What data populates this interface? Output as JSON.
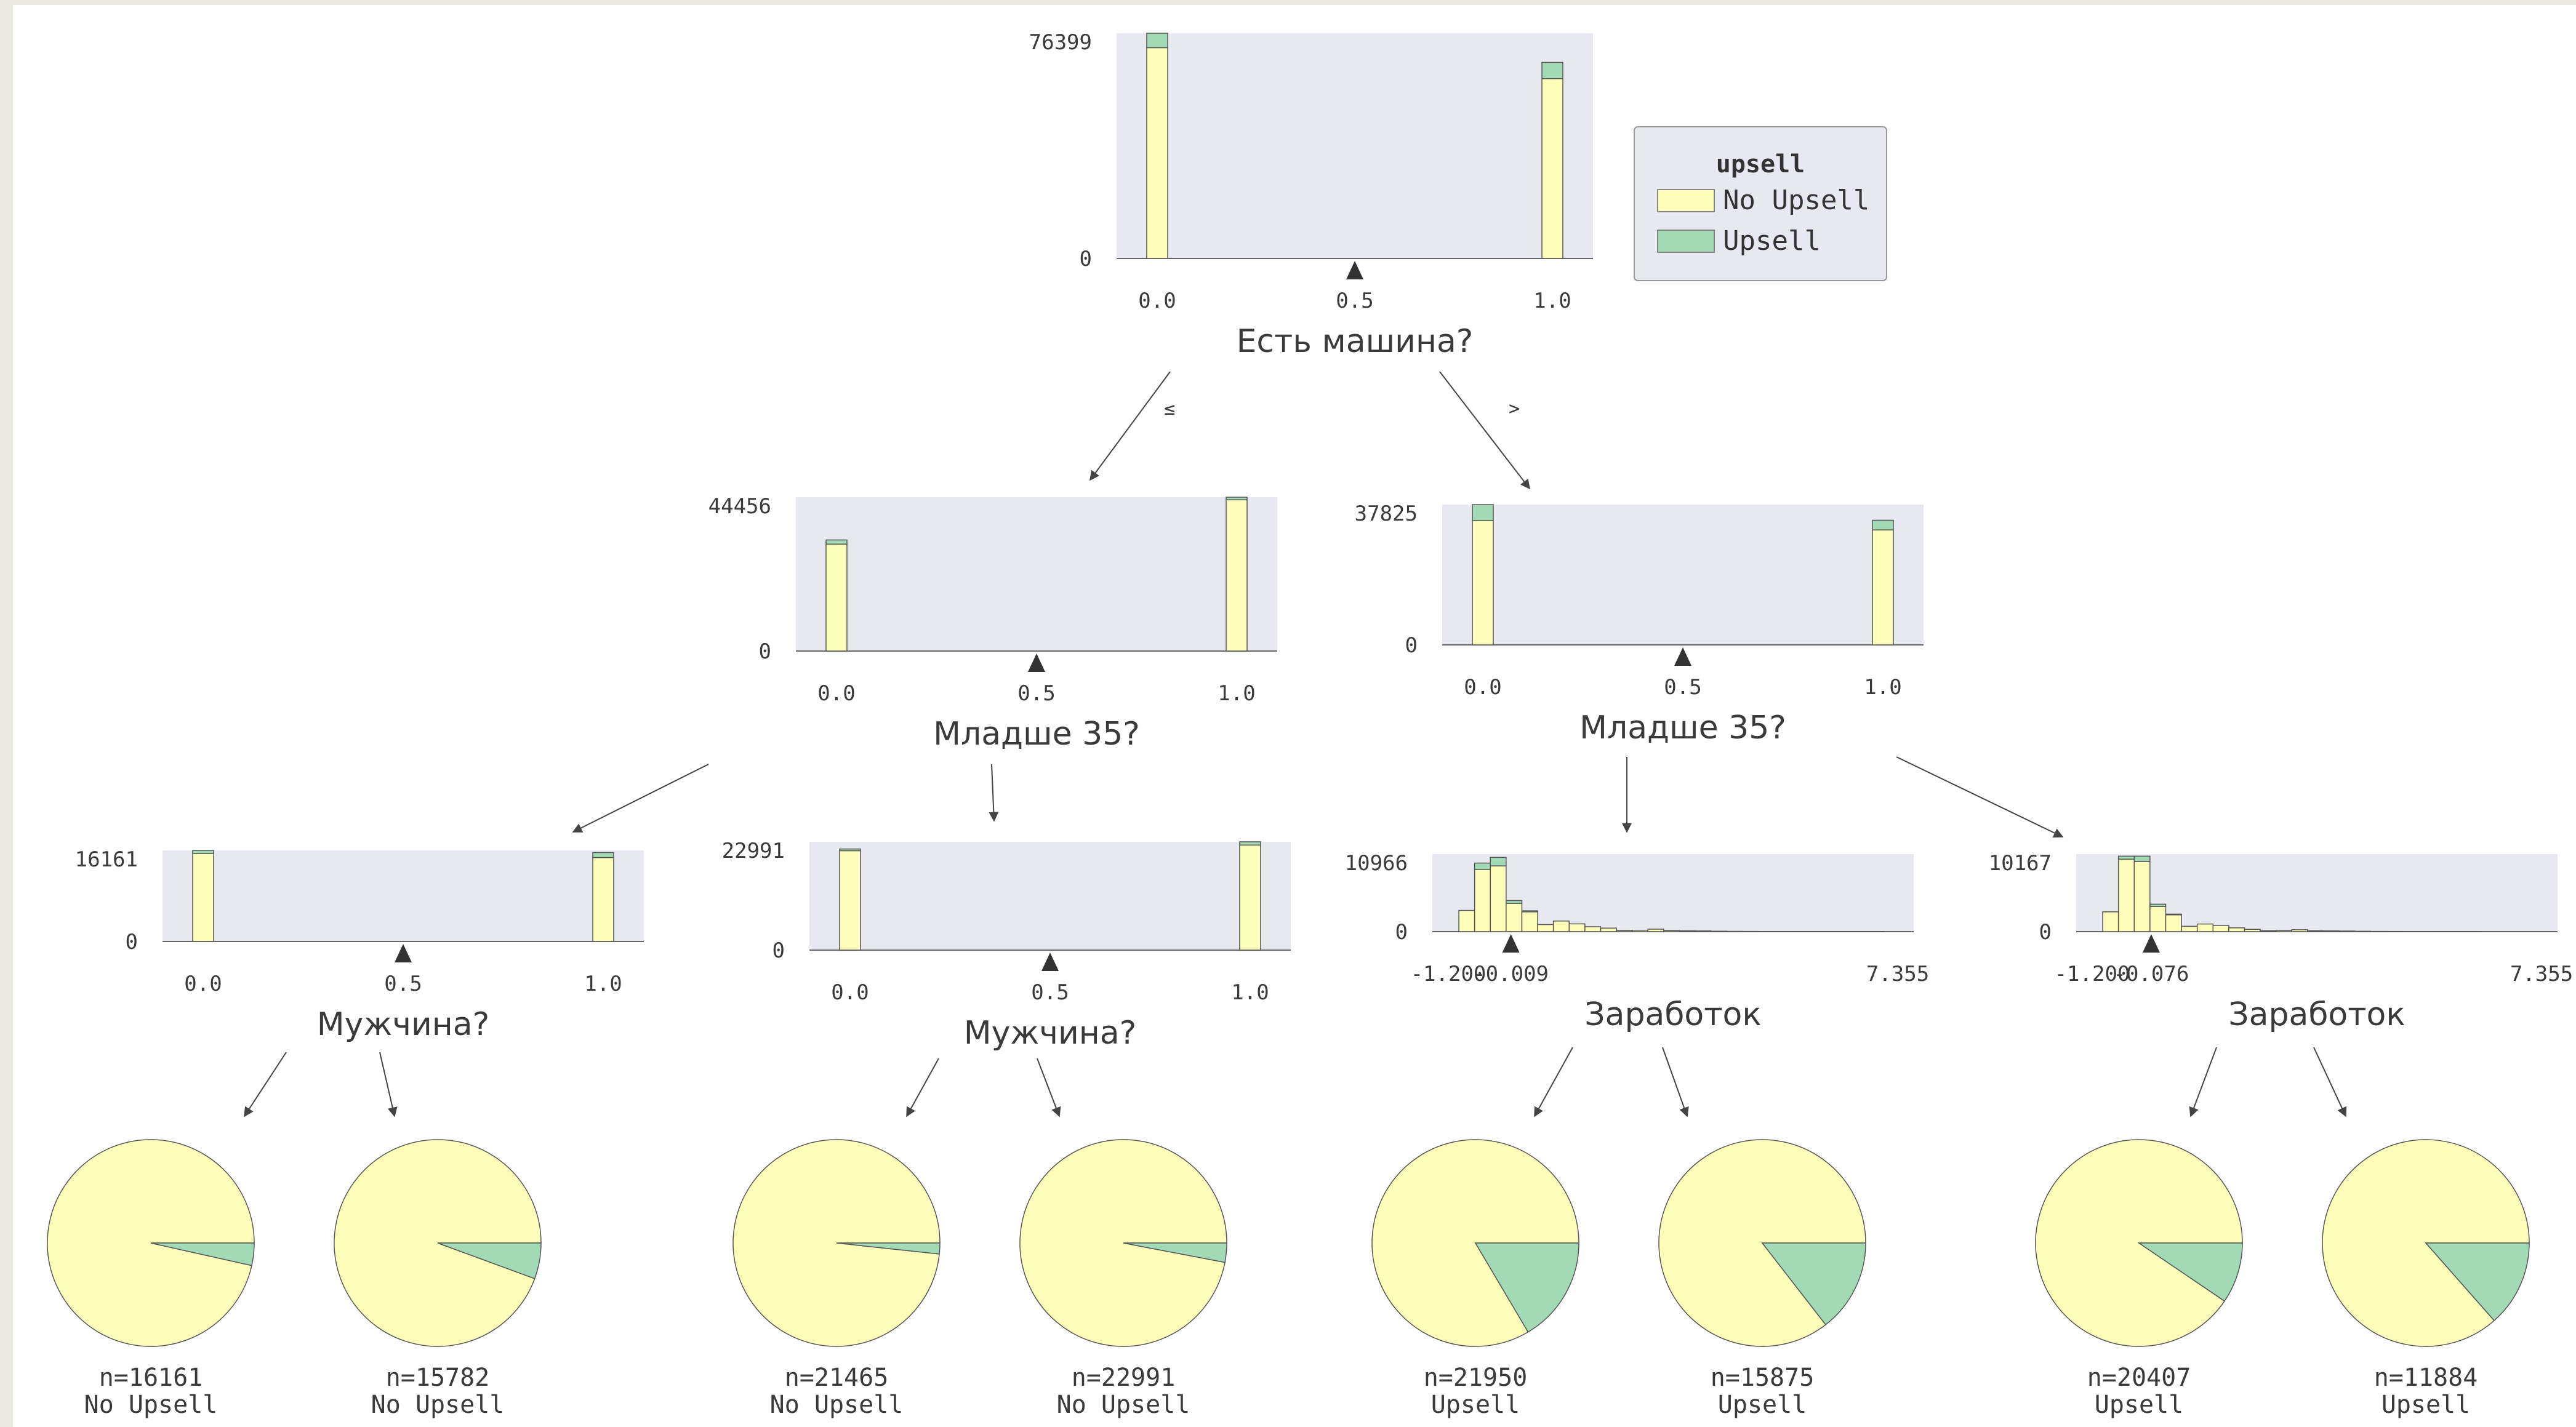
{
  "chart_data": {
    "type": "decision-tree",
    "class_colors": {
      "No Upsell": "#fefebb",
      "Upsell": "#a1dab4"
    },
    "legend": {
      "title": "upsell",
      "items": [
        {
          "label": "No Upsell",
          "color": "#fefebb"
        },
        {
          "label": "Upsell",
          "color": "#a1dab4"
        }
      ]
    },
    "edge_labels": {
      "le": "≤",
      "gt": ">"
    },
    "nodes": [
      {
        "id": "root",
        "feature": "Есть машина?",
        "kind": "binary",
        "split": 0.5,
        "ymax_label": "76399",
        "ymin_label": "0",
        "xticks": [
          "0.0",
          "0.5",
          "1.0"
        ],
        "bins": [
          {
            "x": 0.0,
            "no": 71500,
            "yes": 4899
          },
          {
            "x": 1.0,
            "no": 61000,
            "yes": 5500
          }
        ]
      },
      {
        "id": "left",
        "feature": "Младше 35?",
        "kind": "binary",
        "split": 0.5,
        "ymax_label": "44456",
        "ymin_label": "0",
        "xticks": [
          "0.0",
          "0.5",
          "1.0"
        ],
        "bins": [
          {
            "x": 0.0,
            "no": 30900,
            "yes": 1200
          },
          {
            "x": 1.0,
            "no": 43700,
            "yes": 756
          }
        ]
      },
      {
        "id": "right",
        "feature": "Младше 35?",
        "kind": "binary",
        "split": 0.5,
        "ymax_label": "37825",
        "ymin_label": "0",
        "xticks": [
          "0.0",
          "0.5",
          "1.0"
        ],
        "bins": [
          {
            "x": 0.0,
            "no": 33500,
            "yes": 4325
          },
          {
            "x": 1.0,
            "no": 31000,
            "yes": 2600
          }
        ]
      },
      {
        "id": "ll",
        "feature": "Мужчина?",
        "kind": "binary",
        "split": 0.5,
        "ymax_label": "16161",
        "ymin_label": "0",
        "xticks": [
          "0.0",
          "0.5",
          "1.0"
        ],
        "bins": [
          {
            "x": 0.0,
            "no": 15600,
            "yes": 561
          },
          {
            "x": 1.0,
            "no": 14900,
            "yes": 882
          }
        ]
      },
      {
        "id": "lr",
        "feature": "Мужчина?",
        "kind": "binary",
        "split": 0.5,
        "ymax_label": "22991",
        "ymin_label": "0",
        "xticks": [
          "0.0",
          "0.5",
          "1.0"
        ],
        "bins": [
          {
            "x": 0.0,
            "no": 21100,
            "yes": 365
          },
          {
            "x": 1.0,
            "no": 22300,
            "yes": 691
          }
        ]
      },
      {
        "id": "rl",
        "feature": "Заработок",
        "kind": "hist",
        "split": -0.009,
        "xmin": -1.2,
        "xmax": 7.355,
        "ymax_label": "10966",
        "ymin_label": "0",
        "xticks": [
          "-1.200",
          "-0.009",
          "7.355"
        ],
        "bins": [
          {
            "x": -0.85,
            "no": 3000,
            "yes": 0
          },
          {
            "x": -0.55,
            "no": 8800,
            "yes": 900
          },
          {
            "x": -0.25,
            "no": 9300,
            "yes": 1200
          },
          {
            "x": 0.05,
            "no": 4000,
            "yes": 400
          },
          {
            "x": 0.35,
            "no": 2800,
            "yes": 150
          },
          {
            "x": 0.65,
            "no": 1000,
            "yes": 0
          },
          {
            "x": 0.95,
            "no": 1500,
            "yes": 0
          },
          {
            "x": 1.25,
            "no": 1100,
            "yes": 0
          },
          {
            "x": 1.55,
            "no": 700,
            "yes": 0
          },
          {
            "x": 1.85,
            "no": 500,
            "yes": 0
          },
          {
            "x": 2.15,
            "no": 150,
            "yes": 0
          },
          {
            "x": 2.45,
            "no": 200,
            "yes": 0
          },
          {
            "x": 2.75,
            "no": 350,
            "yes": 0
          },
          {
            "x": 3.05,
            "no": 150,
            "yes": 0
          },
          {
            "x": 3.35,
            "no": 120,
            "yes": 0
          },
          {
            "x": 3.65,
            "no": 100,
            "yes": 0
          },
          {
            "x": 3.95,
            "no": 60,
            "yes": 0
          },
          {
            "x": 4.25,
            "no": 40,
            "yes": 0
          },
          {
            "x": 4.55,
            "no": 30,
            "yes": 0
          },
          {
            "x": 4.85,
            "no": 20,
            "yes": 0
          },
          {
            "x": 5.15,
            "no": 15,
            "yes": 0
          },
          {
            "x": 5.45,
            "no": 10,
            "yes": 0
          },
          {
            "x": 5.75,
            "no": 10,
            "yes": 0
          },
          {
            "x": 6.05,
            "no": 8,
            "yes": 0
          },
          {
            "x": 6.35,
            "no": 6,
            "yes": 0
          },
          {
            "x": 6.65,
            "no": 5,
            "yes": 0
          },
          {
            "x": 6.95,
            "no": 4,
            "yes": 0
          }
        ]
      },
      {
        "id": "rr",
        "feature": "Заработок",
        "kind": "hist",
        "split": -0.076,
        "xmin": -1.2,
        "xmax": 7.355,
        "ymax_label": "10167",
        "ymin_label": "0",
        "xticks": [
          "-1.200",
          "-0.076",
          "7.355"
        ],
        "bins": [
          {
            "x": -0.85,
            "no": 2600,
            "yes": 0
          },
          {
            "x": -0.55,
            "no": 9500,
            "yes": 400
          },
          {
            "x": -0.25,
            "no": 9200,
            "yes": 700
          },
          {
            "x": 0.05,
            "no": 3300,
            "yes": 300
          },
          {
            "x": 0.35,
            "no": 2200,
            "yes": 100
          },
          {
            "x": 0.65,
            "no": 700,
            "yes": 0
          },
          {
            "x": 0.95,
            "no": 1000,
            "yes": 0
          },
          {
            "x": 1.25,
            "no": 800,
            "yes": 0
          },
          {
            "x": 1.55,
            "no": 500,
            "yes": 0
          },
          {
            "x": 1.85,
            "no": 300,
            "yes": 0
          },
          {
            "x": 2.15,
            "no": 120,
            "yes": 0
          },
          {
            "x": 2.45,
            "no": 150,
            "yes": 0
          },
          {
            "x": 2.75,
            "no": 250,
            "yes": 0
          },
          {
            "x": 3.05,
            "no": 120,
            "yes": 0
          },
          {
            "x": 3.35,
            "no": 100,
            "yes": 0
          },
          {
            "x": 3.65,
            "no": 80,
            "yes": 0
          },
          {
            "x": 3.95,
            "no": 50,
            "yes": 0
          },
          {
            "x": 4.25,
            "no": 30,
            "yes": 0
          },
          {
            "x": 4.55,
            "no": 25,
            "yes": 0
          },
          {
            "x": 4.85,
            "no": 15,
            "yes": 0
          },
          {
            "x": 5.15,
            "no": 12,
            "yes": 0
          },
          {
            "x": 5.45,
            "no": 8,
            "yes": 0
          },
          {
            "x": 5.75,
            "no": 6,
            "yes": 0
          },
          {
            "x": 6.05,
            "no": 5,
            "yes": 0
          }
        ]
      }
    ],
    "leaves": [
      {
        "id": "leaf1",
        "n_label": "n=16161",
        "class": "No Upsell",
        "upsell_fraction": 0.035
      },
      {
        "id": "leaf2",
        "n_label": "n=15782",
        "class": "No Upsell",
        "upsell_fraction": 0.056
      },
      {
        "id": "leaf3",
        "n_label": "n=21465",
        "class": "No Upsell",
        "upsell_fraction": 0.017
      },
      {
        "id": "leaf4",
        "n_label": "n=22991",
        "class": "No Upsell",
        "upsell_fraction": 0.03
      },
      {
        "id": "leaf5",
        "n_label": "n=21950",
        "class": "Upsell",
        "upsell_fraction": 0.165
      },
      {
        "id": "leaf6",
        "n_label": "n=15875",
        "class": "Upsell",
        "upsell_fraction": 0.145
      },
      {
        "id": "leaf7",
        "n_label": "n=20407",
        "class": "Upsell",
        "upsell_fraction": 0.095
      },
      {
        "id": "leaf8",
        "n_label": "n=11884",
        "class": "Upsell",
        "upsell_fraction": 0.135
      }
    ]
  }
}
